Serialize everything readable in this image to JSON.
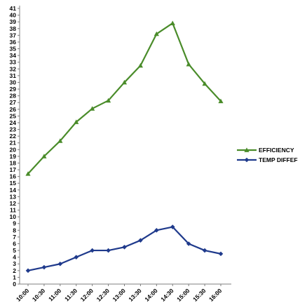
{
  "chart_data": {
    "type": "line",
    "title": "",
    "xlabel": "",
    "ylabel": "",
    "categories": [
      "10:00",
      "10:30",
      "11:00",
      "11:30",
      "12:00",
      "12:30",
      "13:00",
      "13:30",
      "14:00",
      "14:30",
      "15:00",
      "15:30",
      "16:00"
    ],
    "ylim": [
      0,
      41
    ],
    "ytick_step": 1,
    "grid": false,
    "legend_position": "right",
    "series": [
      {
        "name": "EFFICIENCY",
        "color": "#4a8c2a",
        "marker": "triangle",
        "values": [
          16.4,
          19.0,
          21.3,
          24.1,
          26.1,
          27.3,
          30.0,
          32.5,
          37.2,
          38.8,
          32.7,
          29.8,
          27.2
        ]
      },
      {
        "name": "TEMP DIFFEF",
        "color": "#1f3a8c",
        "marker": "diamond",
        "values": [
          2.0,
          2.5,
          3.0,
          4.0,
          5.0,
          5.0,
          5.5,
          6.5,
          8.0,
          8.5,
          6.0,
          5.0,
          4.5
        ]
      }
    ]
  }
}
